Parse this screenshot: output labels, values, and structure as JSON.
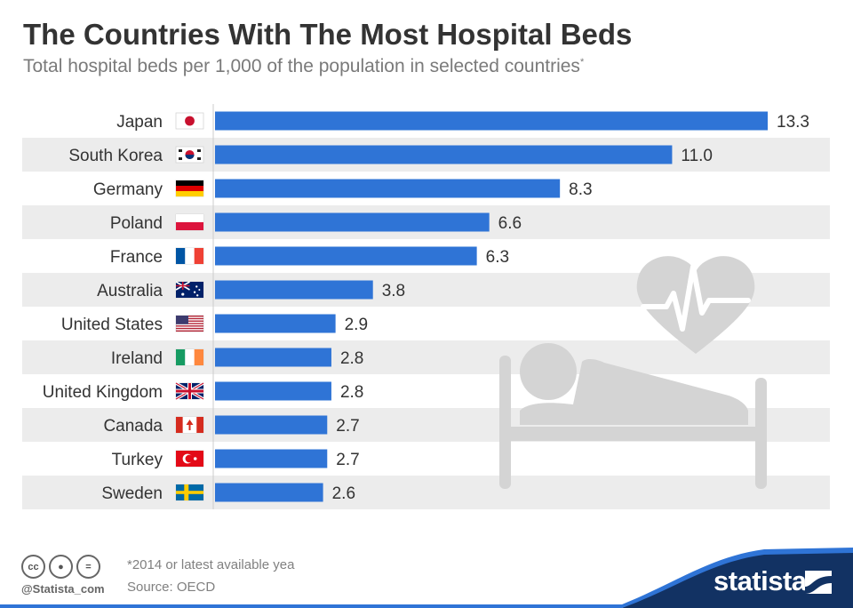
{
  "header": {
    "title": "The Countries With The Most Hospital Beds",
    "subtitle": "Total hospital beds per 1,000 of the population in selected countries",
    "subtitle_mark": "*"
  },
  "chart_data": {
    "type": "bar",
    "orientation": "horizontal",
    "title": "The Countries With The Most Hospital Beds",
    "subtitle": "Total hospital beds per 1,000 of the population in selected countries",
    "xlabel": "",
    "ylabel": "",
    "xlim": [
      0,
      13.3
    ],
    "grid": false,
    "categories": [
      "Japan",
      "South Korea",
      "Germany",
      "Poland",
      "France",
      "Australia",
      "United States",
      "Ireland",
      "United Kingdom",
      "Canada",
      "Turkey",
      "Sweden"
    ],
    "values": [
      13.3,
      11.0,
      8.3,
      6.6,
      6.3,
      3.8,
      2.9,
      2.8,
      2.8,
      2.7,
      2.7,
      2.6
    ],
    "value_labels": [
      "13.3",
      "11.0",
      "8.3",
      "6.6",
      "6.3",
      "3.8",
      "2.9",
      "2.8",
      "2.8",
      "2.7",
      "2.7",
      "2.6"
    ],
    "flags": [
      "japan-flag-icon",
      "south-korea-flag-icon",
      "germany-flag-icon",
      "poland-flag-icon",
      "france-flag-icon",
      "australia-flag-icon",
      "united-states-flag-icon",
      "ireland-flag-icon",
      "united-kingdom-flag-icon",
      "canada-flag-icon",
      "turkey-flag-icon",
      "sweden-flag-icon"
    ]
  },
  "colors": {
    "bar": "#2f74d6",
    "stripe": "#ececec",
    "illustration": "#d4d4d4",
    "brand": "#123263",
    "brand_accent": "#2f74d6"
  },
  "footer": {
    "note": "*2014 or latest available yea",
    "source": "Source: OECD",
    "handle": "@Statista_com",
    "brand": "statista",
    "cc_icons": [
      "cc-icon",
      "by-icon",
      "nd-icon"
    ]
  }
}
